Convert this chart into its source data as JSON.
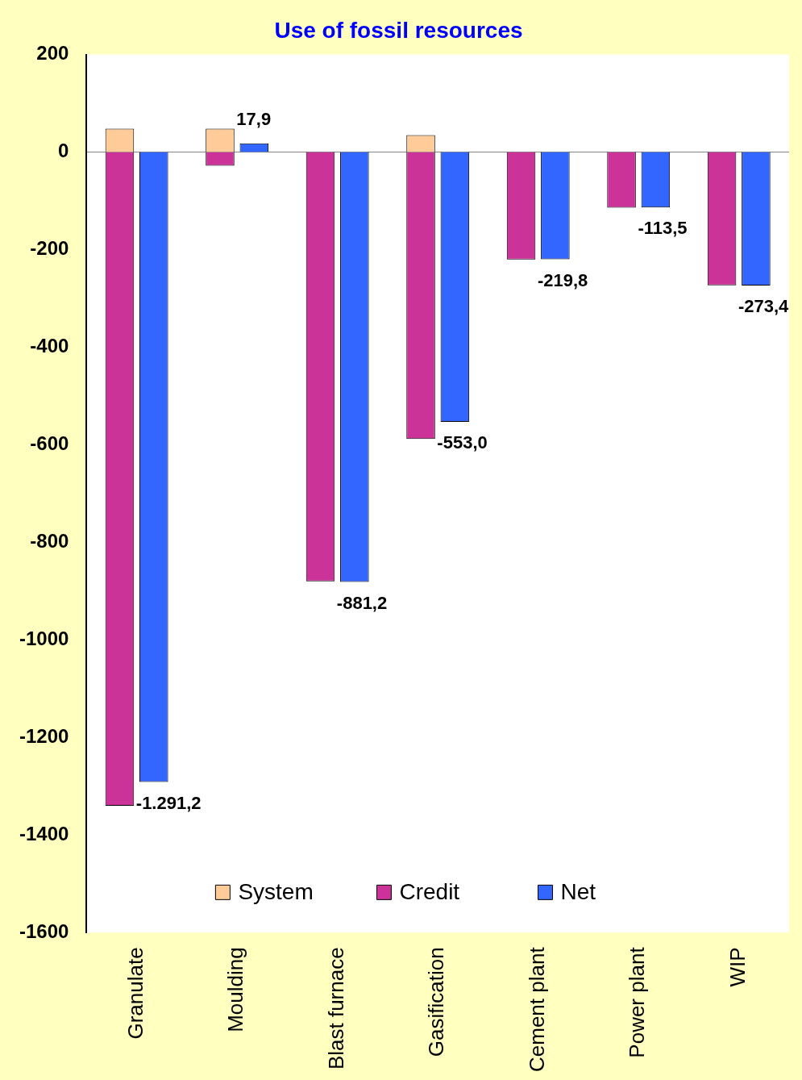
{
  "chart_data": {
    "type": "bar",
    "title": "Use of fossil resources",
    "categories": [
      "Granulate",
      "Moulding",
      "Blast furnace",
      "Gasification",
      "Cement plant",
      "Power plant",
      "WIP"
    ],
    "legend": "bottom",
    "grid": false,
    "ref_lines": [
      {
        "axis": "y",
        "value": 0,
        "color": "#808080"
      }
    ],
    "ylim": [
      -1600,
      200
    ],
    "yticks": [
      -1600,
      -1400,
      -1200,
      -1000,
      -800,
      -600,
      -400,
      -200,
      0,
      200
    ],
    "series": [
      {
        "name": "System",
        "color": "#ffcc99",
        "values": [
          48,
          48,
          0,
          35,
          0,
          0,
          0
        ]
      },
      {
        "name": "Credit",
        "color": "#cc3399",
        "values": [
          -1340,
          -28,
          -880,
          -588,
          -220,
          -114,
          -273
        ]
      },
      {
        "name": "Net",
        "color": "#3366ff",
        "values": [
          -1291.2,
          17.9,
          -881.2,
          -553.0,
          -219.8,
          -113.5,
          -273.4
        ],
        "value_labels": [
          "-1.291,2",
          "17,9",
          "-881,2",
          "-553,0",
          "-219,8",
          "-113,5",
          "-273,4"
        ]
      }
    ]
  }
}
